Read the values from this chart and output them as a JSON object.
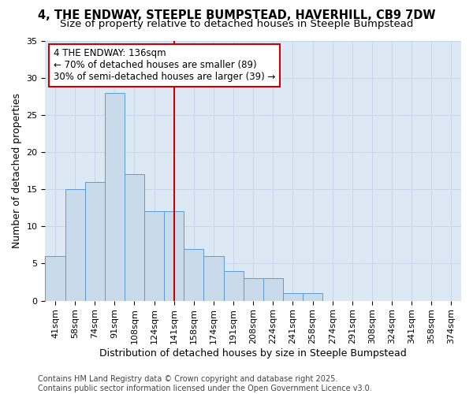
{
  "title_line1": "4, THE ENDWAY, STEEPLE BUMPSTEAD, HAVERHILL, CB9 7DW",
  "title_line2": "Size of property relative to detached houses in Steeple Bumpstead",
  "xlabel": "Distribution of detached houses by size in Steeple Bumpstead",
  "ylabel": "Number of detached properties",
  "bin_labels": [
    "41sqm",
    "58sqm",
    "74sqm",
    "91sqm",
    "108sqm",
    "124sqm",
    "141sqm",
    "158sqm",
    "174sqm",
    "191sqm",
    "208sqm",
    "224sqm",
    "241sqm",
    "258sqm",
    "274sqm",
    "291sqm",
    "308sqm",
    "324sqm",
    "341sqm",
    "358sqm",
    "374sqm"
  ],
  "bar_values": [
    6,
    15,
    16,
    28,
    17,
    12,
    12,
    7,
    6,
    4,
    3,
    3,
    1,
    1,
    0,
    0,
    0,
    0,
    0,
    0,
    0
  ],
  "bar_color": "#c9daea",
  "bar_edge_color": "#5b9bd5",
  "redline_index": 6,
  "redline_label": "4 THE ENDWAY: 136sqm",
  "annotation_line2": "← 70% of detached houses are smaller (89)",
  "annotation_line3": "30% of semi-detached houses are larger (39) →",
  "annotation_box_color": "#ffffff",
  "annotation_box_edge_color": "#cc0000",
  "redline_color": "#cc0000",
  "ylim": [
    0,
    35
  ],
  "yticks": [
    0,
    5,
    10,
    15,
    20,
    25,
    30,
    35
  ],
  "grid_color": "#c8d8ea",
  "background_color": "#dce9f5",
  "footer_line1": "Contains HM Land Registry data © Crown copyright and database right 2025.",
  "footer_line2": "Contains public sector information licensed under the Open Government Licence v3.0.",
  "title_fontsize": 10.5,
  "subtitle_fontsize": 9.5,
  "axis_label_fontsize": 9,
  "tick_fontsize": 8,
  "annotation_fontsize": 8.5,
  "footer_fontsize": 7
}
